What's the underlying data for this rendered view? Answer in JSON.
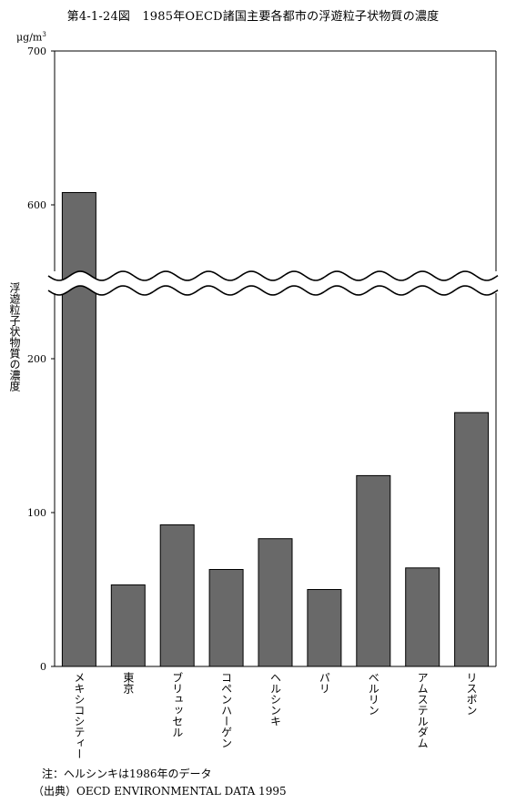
{
  "title": "第4-1-24図　1985年OECD諸国主要各都市の浮遊粒子状物質の濃度",
  "unit": "μg/m",
  "unit_sup": "3",
  "y_axis_label": "浮遊粒子状物質の濃度",
  "notes": {
    "note": "注：ヘルシンキは1986年のデータ",
    "source": "（出典）OECD ENVIRONMENTAL DATA 1995"
  },
  "chart_data": {
    "type": "bar",
    "title": "第4-1-24図　1985年OECD諸国主要各都市の浮遊粒子状物質の濃度",
    "ylabel": "浮遊粒子状物質の濃度",
    "unit": "μg/m3",
    "categories": [
      "メキシコシティー",
      "東京",
      "ブリュッセル",
      "コペンハーゲン",
      "ヘルシンキ",
      "パリ",
      "ベルリン",
      "アムステルダム",
      "リスボン"
    ],
    "values": [
      608,
      53,
      92,
      63,
      83,
      50,
      124,
      64,
      165
    ],
    "yticks": [
      0,
      100,
      200,
      600,
      700
    ],
    "ylim": [
      0,
      700
    ],
    "axis_break": [
      250,
      550
    ],
    "grid": false,
    "bar_color": "#696969"
  }
}
